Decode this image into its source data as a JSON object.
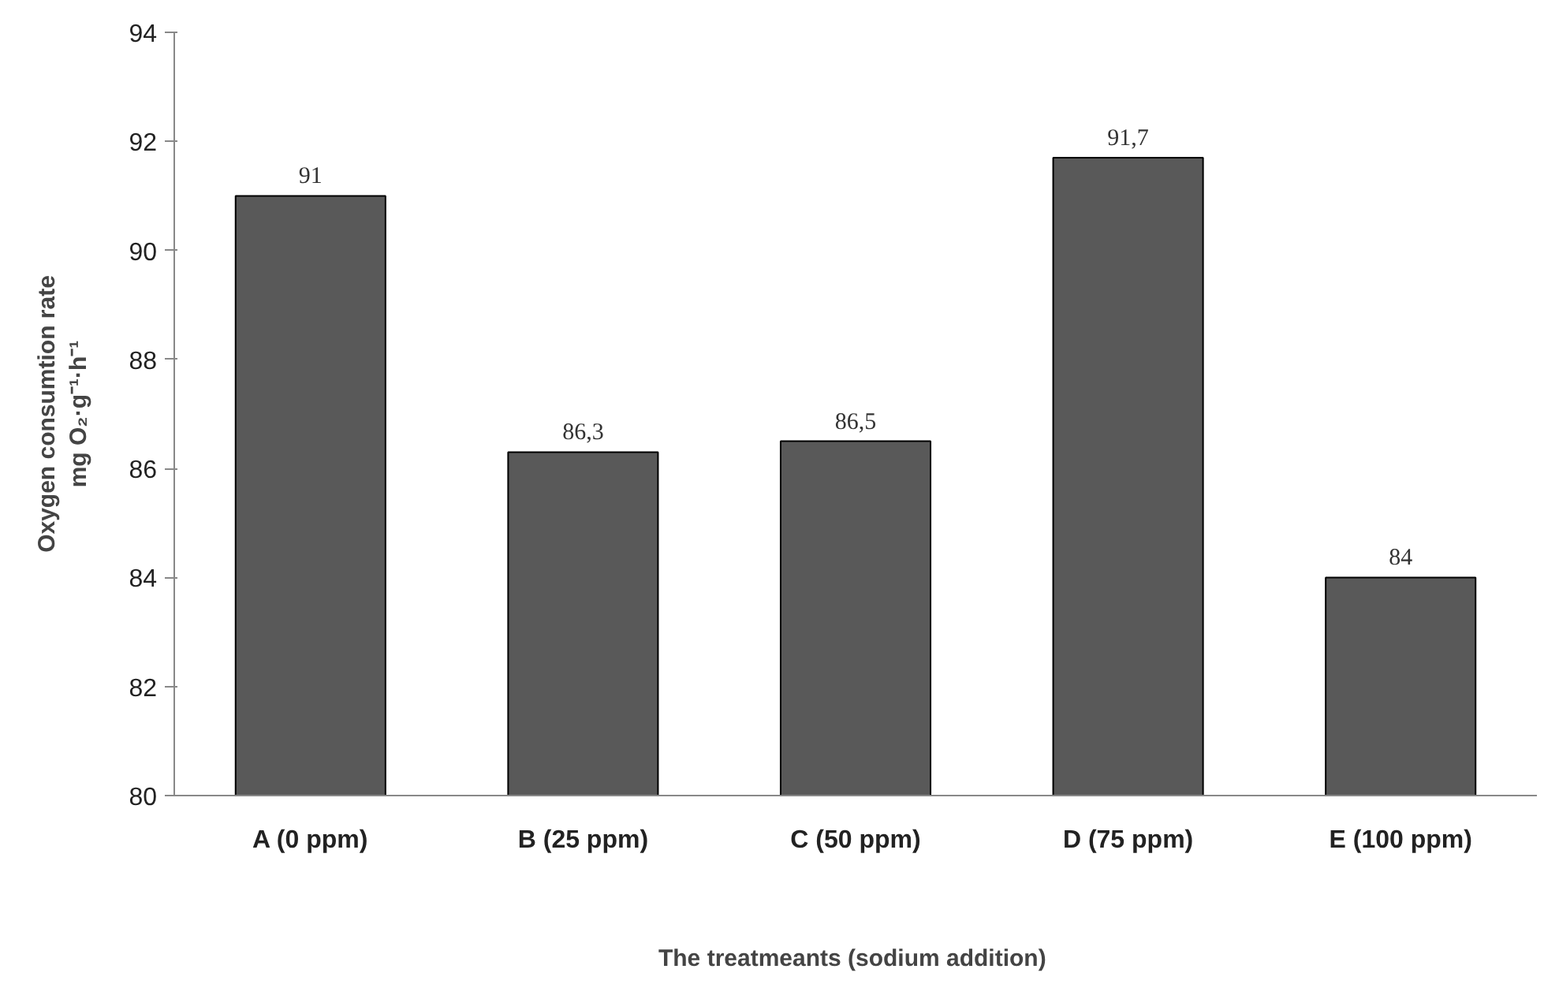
{
  "chart_data": {
    "type": "bar",
    "categories": [
      "A (0 ppm)",
      "B (25 ppm)",
      "C (50 ppm)",
      "D (75 ppm)",
      "E (100 ppm)"
    ],
    "values": [
      91,
      86.3,
      86.5,
      91.7,
      84
    ],
    "value_labels": [
      "91",
      "86,3",
      "86,5",
      "91,7",
      "84"
    ],
    "color": "#595959",
    "ylim": [
      80,
      94
    ],
    "yticks": [
      80,
      82,
      84,
      86,
      88,
      90,
      92,
      94
    ],
    "xlabel": "The treatmeants  (sodium addition)",
    "ylabel": "Oxygen consumtion rate\nmg O₂·g⁻¹·h⁻¹",
    "grid": false
  }
}
